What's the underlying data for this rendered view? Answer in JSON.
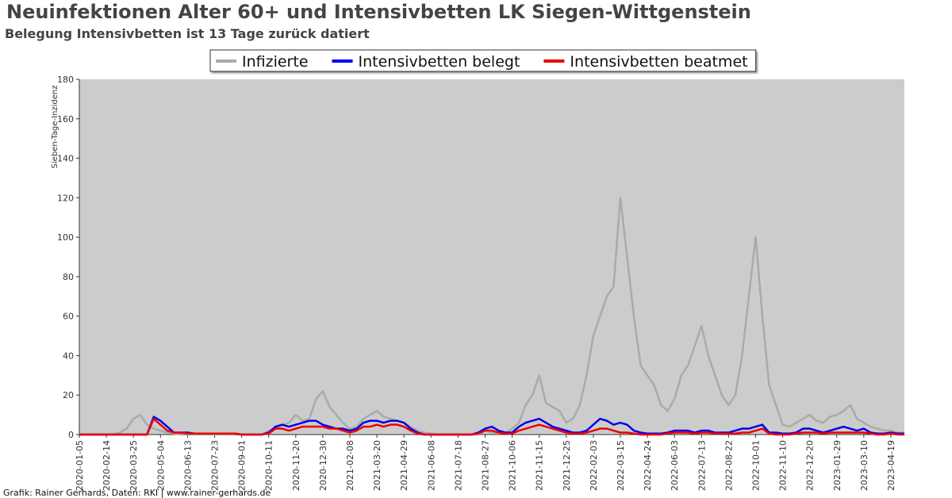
{
  "chart_data": {
    "type": "line",
    "title": "Neuinfektionen Alter 60+ und Intensivbetten LK Siegen-Wittgenstein",
    "subtitle": "Belegung Intensivbetten ist 13 Tage zurück datiert",
    "y_label": "Sieben-Tage-Inzidenz",
    "footer": "Grafik: Rainer Gerhards, Daten: RKI | www.rainer-gerhards.de",
    "legend": "top",
    "background": "#cccccc",
    "grid": false,
    "ylim": [
      0,
      180
    ],
    "yticks": [
      0,
      20,
      40,
      60,
      80,
      100,
      120,
      140,
      160,
      180
    ],
    "categories": [
      "2020-01-05",
      null,
      null,
      null,
      "2020-02-14",
      null,
      null,
      null,
      "2020-03-25",
      null,
      null,
      null,
      "2020-05-04",
      null,
      null,
      null,
      "2020-06-13",
      null,
      null,
      null,
      "2020-07-23",
      null,
      null,
      null,
      "2020-09-01",
      null,
      null,
      null,
      "2020-10-11",
      null,
      null,
      null,
      "2020-11-20",
      null,
      null,
      null,
      "2020-12-30",
      null,
      null,
      null,
      "2021-02-08",
      null,
      null,
      null,
      "2021-03-20",
      null,
      null,
      null,
      "2021-04-29",
      null,
      null,
      null,
      "2021-06-08",
      null,
      null,
      null,
      "2021-07-18",
      null,
      null,
      null,
      "2021-08-27",
      null,
      null,
      null,
      "2021-10-06",
      null,
      null,
      null,
      "2021-11-15",
      null,
      null,
      null,
      "2021-12-25",
      null,
      null,
      null,
      "2022-02-03",
      null,
      null,
      null,
      "2022-03-15",
      null,
      null,
      null,
      "2022-04-24",
      null,
      null,
      null,
      "2022-06-03",
      null,
      null,
      null,
      "2022-07-13",
      null,
      null,
      null,
      "2022-08-22",
      null,
      null,
      null,
      "2022-10-01",
      null,
      null,
      null,
      "2022-11-10",
      null,
      null,
      null,
      "2022-12-20",
      null,
      null,
      null,
      "2023-01-29",
      null,
      null,
      null,
      "2023-03-10",
      null,
      null,
      null,
      "2023-04-19",
      null,
      null
    ],
    "series": [
      {
        "name": "Infizierte",
        "color": "#aaaaaa",
        "width": 2.5,
        "values": [
          0,
          0,
          0,
          0,
          0,
          0,
          1,
          3,
          8,
          10,
          5,
          3,
          2,
          1,
          0.5,
          0,
          0,
          0,
          0,
          0,
          0,
          0,
          0,
          0,
          0,
          0,
          0,
          0,
          2,
          3,
          5,
          6,
          10,
          7,
          8,
          18,
          22,
          14,
          10,
          6,
          3,
          4,
          8,
          10,
          12,
          9,
          8,
          7,
          6,
          4,
          2,
          1,
          0.5,
          0,
          0,
          0,
          0,
          0,
          0,
          0,
          2,
          1,
          1,
          1,
          3,
          6,
          15,
          20,
          30,
          16,
          14,
          12,
          6,
          8,
          15,
          30,
          50,
          60,
          70,
          75,
          120,
          90,
          60,
          35,
          30,
          25,
          15,
          12,
          18,
          30,
          35,
          45,
          55,
          40,
          30,
          20,
          15,
          20,
          40,
          70,
          100,
          60,
          25,
          15,
          5,
          4,
          6,
          8,
          10,
          7,
          6,
          9,
          10,
          12,
          15,
          8,
          6,
          4,
          3,
          2,
          2,
          1,
          1
        ]
      },
      {
        "name": "Intensivbetten belegt",
        "color": "#0000ee",
        "width": 2.5,
        "values": [
          0,
          0,
          0,
          0,
          0,
          0,
          0,
          0,
          0,
          0,
          0,
          9,
          7,
          4,
          1,
          1,
          1,
          0.5,
          0.5,
          0.5,
          0.5,
          0.5,
          0.5,
          0.5,
          0,
          0,
          0,
          0,
          1,
          4,
          5,
          4,
          5,
          6,
          7,
          7,
          5,
          4,
          3,
          3,
          2,
          3,
          6,
          7,
          7,
          6,
          7,
          7,
          6,
          3,
          1,
          0,
          0,
          0,
          0,
          0,
          0,
          0,
          0,
          1,
          3,
          4,
          2,
          1,
          1,
          4,
          6,
          7,
          8,
          6,
          4,
          3,
          2,
          1,
          1,
          2,
          5,
          8,
          7,
          5,
          6,
          5,
          2,
          1,
          0.5,
          0.5,
          0.5,
          1,
          2,
          2,
          2,
          1,
          2,
          2,
          1,
          1,
          1,
          2,
          3,
          3,
          4,
          5,
          1,
          1,
          0.5,
          0.5,
          1,
          3,
          3,
          2,
          1,
          2,
          3,
          4,
          3,
          2,
          3,
          1,
          0.5,
          0.5,
          1,
          0.5,
          0.5
        ]
      },
      {
        "name": "Intensivbetten beatmet",
        "color": "#ee0000",
        "width": 2.5,
        "values": [
          0,
          0,
          0,
          0,
          0,
          0,
          0,
          0,
          0,
          0,
          0,
          8,
          5,
          2,
          1,
          1,
          0.5,
          0.5,
          0.5,
          0.5,
          0.5,
          0.5,
          0.5,
          0.5,
          0,
          0,
          0,
          0,
          0.5,
          3,
          3,
          2,
          3,
          4,
          4,
          4,
          4,
          3,
          3,
          2,
          1,
          2,
          4,
          4,
          5,
          4,
          5,
          5,
          4,
          2,
          0.5,
          0,
          0,
          0,
          0,
          0,
          0,
          0,
          0,
          0.5,
          2,
          2,
          1,
          0.5,
          0.5,
          2,
          3,
          4,
          5,
          4,
          3,
          2,
          1,
          0.5,
          0.5,
          1,
          2,
          3,
          3,
          2,
          1,
          1,
          0.5,
          0,
          0,
          0,
          0,
          0.5,
          1,
          1,
          1,
          0.5,
          1,
          1,
          0.5,
          0.5,
          0.5,
          0.5,
          1,
          1,
          2,
          3,
          0.5,
          0,
          0,
          0,
          0.5,
          1,
          1,
          1,
          0.5,
          1,
          1,
          1,
          1,
          1,
          1,
          0.5,
          0,
          0,
          0.5,
          0,
          0
        ]
      }
    ]
  }
}
